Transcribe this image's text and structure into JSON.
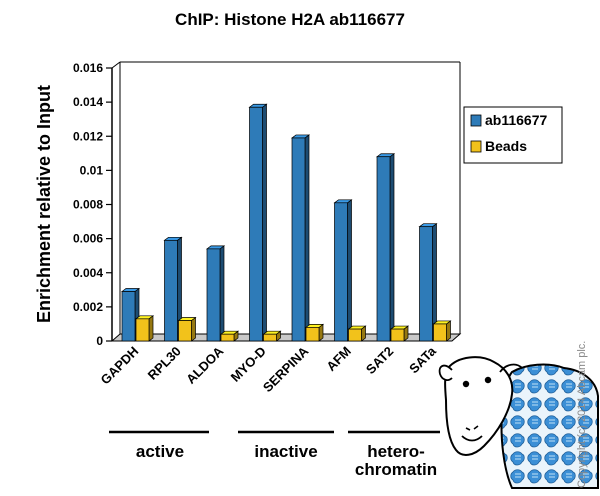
{
  "chart_data": {
    "type": "bar",
    "title": "ChIP: Histone H2A ab116677",
    "ylabel": "Enrichment relative to Input",
    "xlabel": "",
    "ylim": [
      0,
      0.016
    ],
    "yticks": [
      "0",
      "0.002",
      "0.004",
      "0.006",
      "0.008",
      "0.01",
      "0.012",
      "0.014",
      "0.016"
    ],
    "ytick_values": [
      0,
      0.002,
      0.004,
      0.006,
      0.008,
      0.01,
      0.012,
      0.014,
      0.016
    ],
    "categories": [
      "GAPDH",
      "RPL30",
      "ALDOA",
      "MYO-D",
      "SERPINA",
      "AFM",
      "SAT2",
      "SATa"
    ],
    "series": [
      {
        "name": "ab116677",
        "color": "#2e7bb8",
        "values": [
          0.0029,
          0.0059,
          0.0054,
          0.0137,
          0.0119,
          0.0081,
          0.0108,
          0.0067
        ]
      },
      {
        "name": "Beads",
        "color": "#f2c21b",
        "values": [
          0.0013,
          0.0012,
          0.0004,
          0.0004,
          0.0008,
          0.0007,
          0.0007,
          0.001
        ]
      }
    ],
    "legend_position": "right",
    "grid": false,
    "groups": [
      {
        "label": "active",
        "label2": "",
        "categories": [
          "GAPDH",
          "RPL30",
          "ALDOA"
        ]
      },
      {
        "label": "inactive",
        "label2": "",
        "categories": [
          "MYO-D",
          "SERPINA",
          "AFM"
        ]
      },
      {
        "label": "hetero-",
        "label2": "chromatin",
        "categories": [
          "SAT2",
          "SATa"
        ]
      }
    ]
  },
  "copyright": "Copyright (c) 2014 Abcam plc.",
  "logo": {
    "name": "sheep-mascot-icon",
    "fleece_color": "#3b8fd6"
  }
}
